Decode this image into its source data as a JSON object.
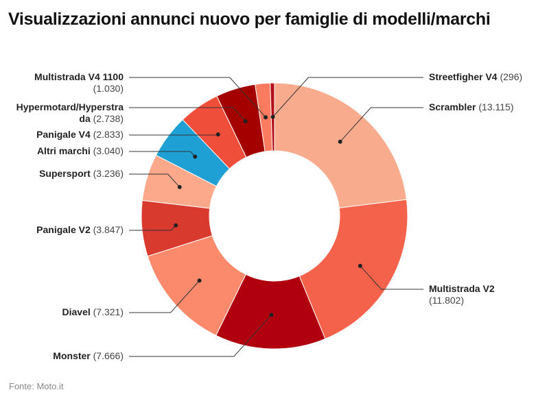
{
  "chart_data": {
    "type": "pie",
    "variant": "donut",
    "title": "Visualizzazioni annunci nuovo per famiglie di modelli/marchi",
    "source": "Fonte: Moto.it",
    "slices": [
      {
        "label": "Scrambler",
        "value": 13115,
        "display": "(13.115)",
        "color": "#f9ab8d"
      },
      {
        "label": "Multistrada V2",
        "value": 11802,
        "display": "(11.802)",
        "color": "#f4624b"
      },
      {
        "label": "Monster",
        "value": 7666,
        "display": "(7.666)",
        "color": "#b00010"
      },
      {
        "label": "Diavel",
        "value": 7321,
        "display": "(7.321)",
        "color": "#fb8a6d"
      },
      {
        "label": "Panigale V2",
        "value": 3847,
        "display": "(3.847)",
        "color": "#d83a2d"
      },
      {
        "label": "Supersport",
        "value": 3236,
        "display": "(3.236)",
        "color": "#fba98a"
      },
      {
        "label": "Altri marchi",
        "value": 3040,
        "display": "(3.040)",
        "color": "#1ea0d5"
      },
      {
        "label": "Panigale V4",
        "value": 2833,
        "display": "(2.833)",
        "color": "#ef4e3b"
      },
      {
        "label": "Hypermotard/Hyperstrada",
        "value": 2738,
        "display": "(2.738)",
        "color": "#a50000"
      },
      {
        "label": "Multistrada V4 1100",
        "value": 1030,
        "display": "(1.030)",
        "color": "#fb7b60"
      },
      {
        "label": "Streetfigher V4",
        "value": 296,
        "display": "(296)",
        "color": "#b3101a"
      }
    ]
  }
}
